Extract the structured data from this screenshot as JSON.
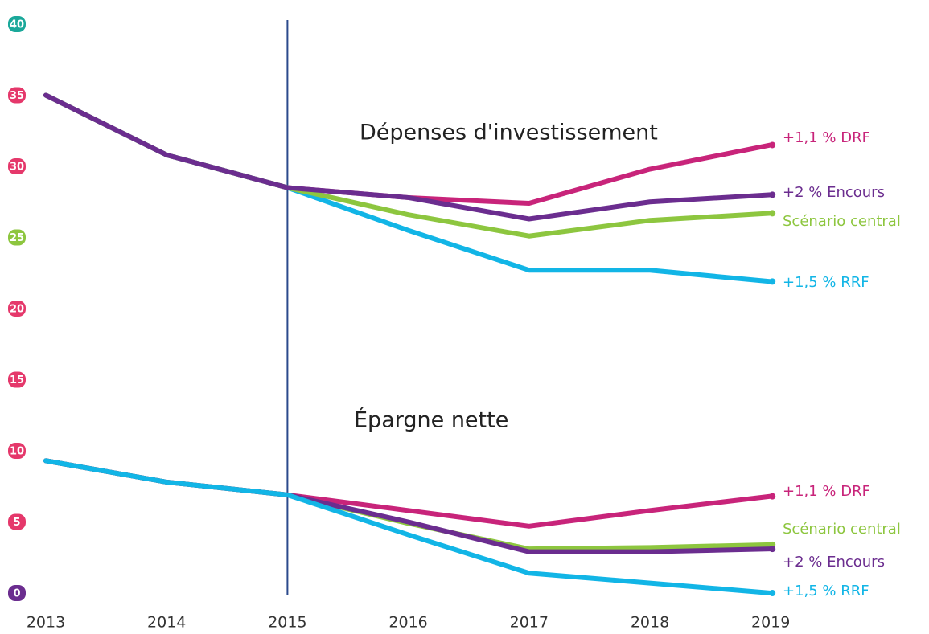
{
  "chart_data": {
    "type": "line",
    "categories": [
      "2013",
      "2014",
      "2015",
      "2016",
      "2017",
      "2018",
      "2019"
    ],
    "annotations": [
      "Dépenses d'investissement",
      "Épargne nette"
    ],
    "ylim": [
      0,
      40
    ],
    "yticks": [
      0,
      5,
      10,
      15,
      20,
      25,
      30,
      35,
      40
    ],
    "series": [
      {
        "name": "+1,1 % DRF",
        "color": "#c8247a",
        "values": [
          35,
          30.8,
          28.5,
          27.8,
          27.4,
          29.8,
          31.5
        ]
      },
      {
        "name": "+2 % Encours",
        "color": "#6b2d8f",
        "values": [
          35,
          30.8,
          28.5,
          27.8,
          26.3,
          27.5,
          28.0
        ]
      },
      {
        "name": "Scénario central",
        "color": "#8dc63f",
        "values": [
          35,
          30.8,
          28.5,
          26.6,
          25.1,
          26.2,
          26.7
        ]
      },
      {
        "name": "+1,5 % RRF",
        "color": "#12b5e6",
        "values": [
          35,
          30.8,
          28.5,
          25.5,
          22.7,
          22.7,
          21.9
        ]
      },
      {
        "name": "+1,1 % DRF",
        "color": "#c8247a",
        "values": [
          9.3,
          7.8,
          6.9,
          5.8,
          4.7,
          5.8,
          6.8
        ]
      },
      {
        "name": "Scénario central",
        "color": "#8dc63f",
        "values": [
          9.3,
          7.8,
          6.9,
          4.9,
          3.1,
          3.2,
          3.4
        ]
      },
      {
        "name": "+2 % Encours",
        "color": "#6b2d8f",
        "values": [
          9.3,
          7.8,
          6.9,
          5.0,
          2.9,
          2.9,
          3.1
        ]
      },
      {
        "name": "+1,5 % RRF",
        "color": "#12b5e6",
        "values": [
          9.3,
          7.8,
          6.9,
          4.1,
          1.4,
          0.7,
          0
        ]
      }
    ]
  }
}
